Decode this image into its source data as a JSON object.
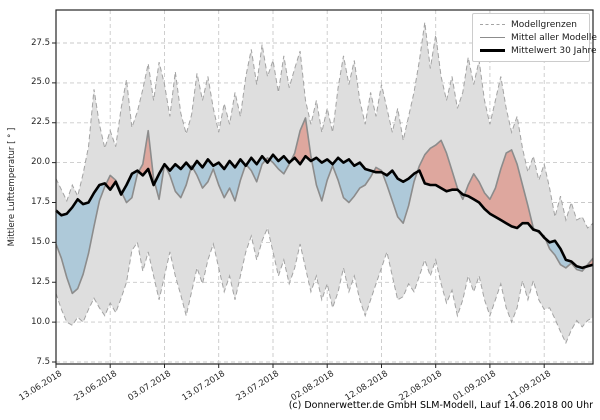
{
  "figure": {
    "caption": "(c) Donnerwetter.de GmbH SLM-Modell, Lauf 14.06.2018 00 Uhr"
  },
  "legend": {
    "items": [
      {
        "label": "Modellgrenzen",
        "style": "dashed-gray"
      },
      {
        "label": "Mittel aller Modelle",
        "style": "solid-gray"
      },
      {
        "label": "Mittelwert 30 Jahre",
        "style": "solid-black"
      }
    ]
  },
  "chart_data": {
    "type": "line",
    "title": "",
    "ylabel": "Mittlere Lufttemperatur [ ° ]",
    "x_unit": "Tage ab 13.06.2018 (1 Punkt pro Tag)",
    "start_date": "13.06.2018",
    "end_date": "20.09.2018",
    "x_tick_labels": [
      "13.06.2018",
      "23.06.2018",
      "03.07.2018",
      "13.07.2018",
      "23.07.2018",
      "02.08.2018",
      "12.08.2018",
      "22.08.2018",
      "01.09.2018",
      "11.09.2018"
    ],
    "x_tick_days": [
      0,
      10,
      20,
      30,
      40,
      50,
      60,
      70,
      80,
      90
    ],
    "y_ticks": [
      7.5,
      10.0,
      12.5,
      15.0,
      17.5,
      20.0,
      22.5,
      25.0,
      27.5
    ],
    "ylim": [
      7.4,
      29.6
    ],
    "grid": true,
    "legend_position": "top-right",
    "colors": {
      "band_fill": "#dedede",
      "band_edge": "#a3a3a3",
      "model_mean_line": "#8c8c8c",
      "mean30_line": "#000000",
      "warm_fill": "rgba(222,100,80,0.45)",
      "cool_fill": "rgba(125,180,212,0.5)",
      "grid_line": "#c9c9c9"
    },
    "fills_meaning": {
      "warm": "Mittel aller Modelle liegt ueber dem Mittelwert 30 Jahre",
      "cool": "Mittel aller Modelle liegt unter dem Mittelwert 30 Jahre"
    },
    "series": [
      {
        "name": "Modellgrenzen (obere Grenze)",
        "role": "upper_bound",
        "values": [
          19.0,
          18.3,
          17.6,
          18.6,
          17.9,
          19.3,
          21.0,
          24.6,
          22.4,
          20.9,
          22.0,
          21.0,
          23.4,
          25.2,
          22.2,
          23.2,
          24.6,
          26.2,
          23.9,
          26.3,
          24.9,
          22.9,
          25.7,
          23.1,
          21.8,
          23.0,
          25.6,
          23.9,
          25.4,
          23.4,
          21.9,
          23.7,
          22.4,
          24.4,
          22.9,
          25.4,
          27.1,
          24.9,
          27.4,
          25.4,
          26.4,
          24.4,
          26.7,
          24.7,
          25.9,
          27.0,
          23.9,
          22.4,
          23.9,
          21.9,
          23.4,
          21.9,
          24.7,
          26.7,
          24.9,
          26.4,
          23.9,
          22.4,
          24.4,
          22.9,
          24.9,
          23.4,
          21.9,
          23.4,
          21.4,
          22.9,
          24.4,
          26.4,
          28.8,
          25.9,
          28.0,
          25.4,
          23.9,
          25.4,
          23.4,
          24.4,
          26.6,
          24.9,
          26.4,
          23.9,
          22.4,
          23.9,
          25.4,
          23.4,
          21.9,
          22.9,
          20.9,
          19.4,
          20.4,
          18.9,
          19.9,
          18.4,
          16.6,
          17.9,
          16.4,
          17.5,
          16.4,
          16.6,
          15.9,
          16.2
        ]
      },
      {
        "name": "Modellgrenzen (untere Grenze)",
        "role": "lower_bound",
        "values": [
          11.8,
          10.8,
          10.0,
          9.8,
          10.3,
          10.0,
          10.8,
          11.5,
          10.9,
          10.4,
          11.2,
          10.6,
          11.5,
          12.5,
          14.5,
          15.0,
          13.2,
          14.4,
          12.9,
          11.4,
          12.9,
          14.4,
          12.9,
          11.7,
          10.4,
          11.9,
          13.4,
          12.4,
          13.9,
          14.9,
          13.4,
          11.9,
          12.9,
          11.4,
          12.9,
          14.4,
          15.4,
          13.9,
          15.1,
          15.9,
          14.4,
          12.9,
          13.9,
          12.4,
          13.4,
          14.9,
          13.4,
          11.9,
          12.9,
          11.4,
          12.4,
          10.9,
          11.9,
          13.4,
          11.9,
          12.9,
          11.4,
          10.4,
          11.4,
          12.4,
          13.4,
          14.4,
          12.9,
          11.4,
          11.6,
          12.4,
          11.9,
          12.9,
          13.9,
          12.9,
          13.9,
          12.4,
          11.2,
          12.0,
          10.4,
          11.4,
          12.9,
          11.9,
          12.9,
          11.4,
          10.4,
          11.4,
          12.4,
          10.9,
          10.0,
          10.9,
          12.6,
          11.4,
          12.6,
          11.4,
          10.8,
          10.9,
          10.2,
          9.4,
          8.7,
          9.5,
          10.1,
          9.7,
          10.1,
          10.3
        ]
      },
      {
        "name": "Mittel aller Modelle",
        "role": "model_mean",
        "values": [
          14.9,
          14.0,
          12.8,
          11.8,
          12.1,
          13.0,
          14.3,
          16.0,
          17.6,
          18.5,
          19.2,
          18.9,
          18.2,
          17.5,
          17.8,
          19.3,
          19.9,
          22.0,
          19.0,
          17.7,
          19.9,
          19.2,
          18.2,
          17.8,
          18.6,
          19.8,
          19.2,
          18.4,
          18.8,
          19.6,
          18.6,
          17.8,
          18.4,
          17.6,
          18.9,
          19.9,
          19.5,
          18.8,
          19.9,
          20.3,
          20.0,
          19.6,
          19.3,
          19.9,
          20.6,
          22.0,
          22.8,
          20.4,
          18.6,
          17.6,
          18.9,
          19.8,
          18.9,
          17.8,
          17.5,
          17.9,
          18.4,
          18.6,
          19.1,
          19.7,
          19.5,
          18.6,
          17.6,
          16.6,
          16.2,
          17.3,
          18.8,
          19.8,
          20.5,
          20.9,
          21.1,
          21.4,
          20.6,
          19.5,
          18.4,
          17.7,
          18.6,
          19.3,
          18.8,
          18.1,
          17.7,
          18.4,
          19.6,
          20.6,
          20.8,
          19.9,
          18.6,
          17.3,
          15.9,
          15.6,
          15.4,
          14.6,
          14.2,
          13.6,
          13.4,
          13.7,
          13.3,
          13.2,
          13.6,
          14.0
        ]
      },
      {
        "name": "Mittelwert 30 Jahre",
        "role": "mean_30y",
        "values": [
          17.0,
          16.7,
          16.8,
          17.2,
          17.7,
          17.4,
          17.5,
          18.1,
          18.6,
          18.7,
          18.3,
          18.8,
          18.0,
          18.6,
          19.3,
          19.5,
          19.2,
          19.6,
          18.6,
          19.3,
          19.9,
          19.5,
          19.9,
          19.6,
          20.0,
          19.6,
          20.1,
          19.7,
          20.2,
          19.8,
          20.0,
          19.6,
          20.1,
          19.7,
          20.2,
          19.8,
          20.3,
          19.9,
          20.4,
          20.0,
          20.5,
          20.1,
          20.4,
          20.0,
          20.3,
          19.9,
          20.4,
          20.1,
          20.3,
          20.0,
          20.2,
          19.9,
          20.3,
          20.0,
          20.2,
          19.8,
          20.0,
          19.6,
          19.5,
          19.4,
          19.4,
          19.2,
          19.5,
          19.0,
          18.8,
          19.0,
          19.3,
          19.5,
          18.7,
          18.6,
          18.6,
          18.4,
          18.2,
          18.3,
          18.3,
          18.0,
          17.9,
          17.7,
          17.5,
          17.1,
          16.8,
          16.6,
          16.4,
          16.2,
          16.0,
          15.9,
          16.2,
          16.2,
          15.8,
          15.7,
          15.3,
          15.0,
          15.1,
          14.6,
          13.9,
          13.8,
          13.5,
          13.4,
          13.5,
          13.6
        ]
      }
    ]
  }
}
